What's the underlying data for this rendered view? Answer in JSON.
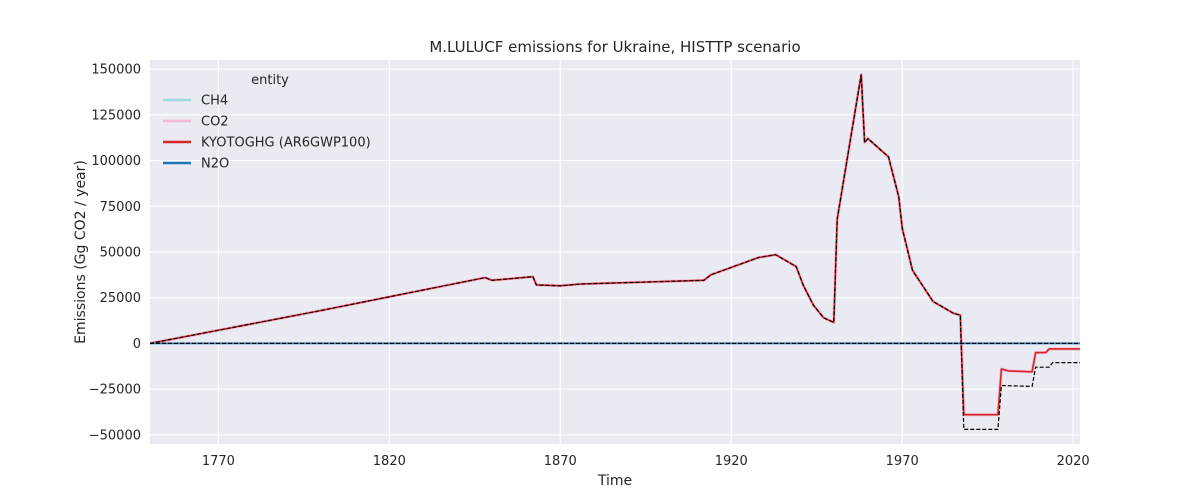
{
  "chart_data": {
    "type": "line",
    "title": "M.LULUCF emissions for Ukraine, HISTTP scenario",
    "xlabel": "Time",
    "ylabel": "Emissions (Gg CO2 / year)",
    "xlim": [
      1750,
      2022
    ],
    "ylim": [
      -55000,
      155000
    ],
    "xticks": [
      1770,
      1820,
      1870,
      1920,
      1970,
      2020
    ],
    "yticks": [
      -50000,
      -25000,
      0,
      25000,
      50000,
      75000,
      100000,
      125000,
      150000
    ],
    "ytick_labels": [
      "−50000",
      "−25000",
      "0",
      "25000",
      "50000",
      "75000",
      "100000",
      "125000",
      "150000"
    ],
    "grid": true,
    "legend": {
      "title": "entity",
      "placement": "top-left",
      "entries": [
        "CH4",
        "CO2",
        "KYOTOGHG (AR6GWP100)",
        "N2O"
      ]
    },
    "colors": {
      "background": "#eaeaf2",
      "grid": "#ffffff",
      "CH4": "#9edae5",
      "CO2": "#f7b6d2",
      "KYOTOGHG": "#d62728",
      "N2O": "#1f77b4",
      "reference": "#000000"
    },
    "series": [
      {
        "name": "CH4",
        "points": [
          [
            1750,
            0
          ],
          [
            2022,
            0
          ]
        ]
      },
      {
        "name": "CO2",
        "points": [
          [
            1750,
            0
          ],
          [
            1800,
            18000
          ],
          [
            1848,
            36000
          ],
          [
            1850,
            34500
          ],
          [
            1862,
            36500
          ],
          [
            1863,
            32000
          ],
          [
            1870,
            31500
          ],
          [
            1876,
            32500
          ],
          [
            1912,
            34500
          ],
          [
            1914,
            37500
          ],
          [
            1928,
            47000
          ],
          [
            1933,
            48500
          ],
          [
            1939,
            42000
          ],
          [
            1941,
            32000
          ],
          [
            1944,
            21000
          ],
          [
            1947,
            14000
          ],
          [
            1950,
            11500
          ],
          [
            1951,
            68000
          ],
          [
            1958,
            147000
          ],
          [
            1959,
            110000
          ],
          [
            1960,
            112000
          ],
          [
            1966,
            102000
          ],
          [
            1969,
            80000
          ],
          [
            1970,
            63000
          ],
          [
            1973,
            40000
          ],
          [
            1979,
            23000
          ],
          [
            1985,
            16500
          ],
          [
            1987,
            15500
          ],
          [
            1988,
            -39000
          ],
          [
            1998,
            -39000
          ],
          [
            1999,
            -14000
          ],
          [
            2001,
            -15000
          ],
          [
            2008,
            -15500
          ],
          [
            2009,
            -5000
          ],
          [
            2012,
            -5000
          ],
          [
            2013,
            -3000
          ],
          [
            2022,
            -3000
          ]
        ]
      },
      {
        "name": "KYOTOGHG (AR6GWP100)",
        "points": [
          [
            1750,
            0
          ],
          [
            1800,
            18000
          ],
          [
            1848,
            36000
          ],
          [
            1850,
            34500
          ],
          [
            1862,
            36500
          ],
          [
            1863,
            32000
          ],
          [
            1870,
            31500
          ],
          [
            1876,
            32500
          ],
          [
            1912,
            34500
          ],
          [
            1914,
            37500
          ],
          [
            1928,
            47000
          ],
          [
            1933,
            48500
          ],
          [
            1939,
            42000
          ],
          [
            1941,
            32000
          ],
          [
            1944,
            21000
          ],
          [
            1947,
            14000
          ],
          [
            1950,
            11500
          ],
          [
            1951,
            68000
          ],
          [
            1958,
            147000
          ],
          [
            1959,
            110000
          ],
          [
            1960,
            112000
          ],
          [
            1966,
            102000
          ],
          [
            1969,
            80000
          ],
          [
            1970,
            63000
          ],
          [
            1973,
            40000
          ],
          [
            1979,
            23000
          ],
          [
            1985,
            16500
          ],
          [
            1987,
            15500
          ],
          [
            1988,
            -39000
          ],
          [
            1998,
            -39000
          ],
          [
            1999,
            -14000
          ],
          [
            2001,
            -15000
          ],
          [
            2008,
            -15500
          ],
          [
            2009,
            -5000
          ],
          [
            2012,
            -5000
          ],
          [
            2013,
            -3000
          ],
          [
            2022,
            -3000
          ]
        ]
      },
      {
        "name": "N2O",
        "points": [
          [
            1750,
            0
          ],
          [
            2022,
            0
          ]
        ]
      }
    ],
    "reference_lines": [
      {
        "style": "dashed",
        "points": [
          [
            1750,
            0
          ],
          [
            1800,
            18000
          ],
          [
            1848,
            36000
          ],
          [
            1850,
            34500
          ],
          [
            1862,
            36500
          ],
          [
            1863,
            32000
          ],
          [
            1870,
            31500
          ],
          [
            1876,
            32500
          ],
          [
            1912,
            34500
          ],
          [
            1914,
            37500
          ],
          [
            1928,
            47000
          ],
          [
            1933,
            48500
          ],
          [
            1939,
            42000
          ],
          [
            1941,
            32000
          ],
          [
            1944,
            21000
          ],
          [
            1947,
            14000
          ],
          [
            1950,
            11500
          ],
          [
            1951,
            68000
          ],
          [
            1958,
            147000
          ],
          [
            1959,
            110000
          ],
          [
            1960,
            112000
          ],
          [
            1966,
            102000
          ],
          [
            1969,
            80000
          ],
          [
            1970,
            63000
          ],
          [
            1973,
            40000
          ],
          [
            1979,
            23000
          ],
          [
            1985,
            16500
          ],
          [
            1987,
            15500
          ],
          [
            1988,
            -47000
          ],
          [
            1998,
            -47000
          ],
          [
            1999,
            -23000
          ],
          [
            2008,
            -23500
          ],
          [
            2009,
            -13000
          ],
          [
            2013,
            -13000
          ],
          [
            2014,
            -10500
          ],
          [
            2022,
            -10500
          ]
        ]
      },
      {
        "style": "dashed",
        "points": [
          [
            1750,
            0
          ],
          [
            2022,
            0
          ]
        ]
      }
    ]
  }
}
